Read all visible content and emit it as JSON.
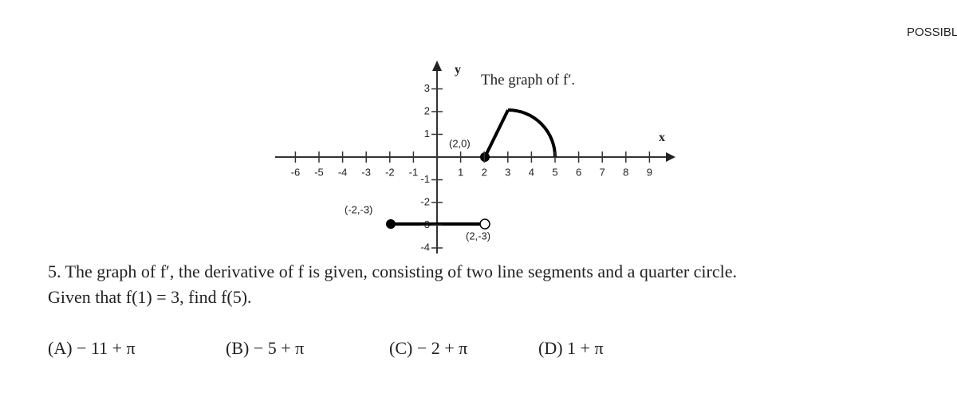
{
  "header": {
    "corner_label": "POSSIBLE"
  },
  "graph": {
    "title": "The graph of f′.",
    "y_label": "y",
    "x_label": "x",
    "x_tick_labels": [
      "-6",
      "-5",
      "-4",
      "-3",
      "-2",
      "-1",
      "1",
      "2",
      "3",
      "4",
      "5",
      "6",
      "7",
      "8",
      "9"
    ],
    "y_tick_labels": [
      "3",
      "2",
      "1",
      "-1",
      "-2",
      "-3",
      "-4"
    ],
    "point_labels": [
      "(2,0)",
      "(-2,-3)",
      "(2,-3)"
    ]
  },
  "question": {
    "lines": [
      "5. The graph of f′, the derivative of f is given, consisting of two line segments and a quarter circle.",
      "Given that f(1) = 3, find f(5)."
    ]
  },
  "choices": [
    "(A)  − 11 + π",
    "(B)  − 5 + π",
    "(C)  − 2 + π",
    "(D) 1 + π"
  ]
}
